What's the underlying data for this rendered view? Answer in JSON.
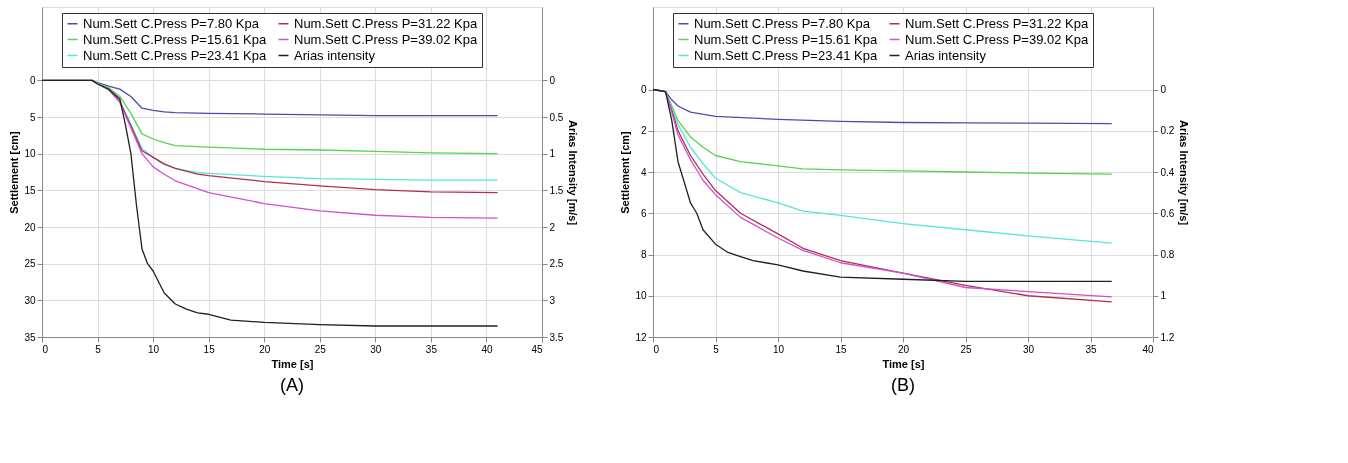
{
  "chart_data": [
    {
      "type": "line",
      "xlabel": "Time [s]",
      "ylabel": "Settlement [cm]",
      "y2label": "Arias Intensity [m/s]",
      "annotations": [
        "(A)"
      ],
      "xlim": [
        0,
        45
      ],
      "xticks": [
        0,
        5,
        10,
        15,
        20,
        25,
        30,
        35,
        40,
        45
      ],
      "ylim": [
        35,
        -10
      ],
      "yticks": [
        0,
        5,
        10,
        15,
        20,
        25,
        30,
        35
      ],
      "y2lim": [
        3.5,
        -1
      ],
      "y2ticks": [
        0,
        0.5,
        1,
        1.5,
        2,
        2.5,
        3,
        3.5
      ],
      "grid": true,
      "legend": "top",
      "line_style": "solid",
      "series": [
        {
          "name": "Num.Sett C.Press P=7.80 Kpa",
          "color": "#4b4bb0",
          "x": [
            0,
            4.5,
            5,
            6,
            7,
            8,
            9,
            10,
            11,
            12,
            15,
            20,
            25,
            30,
            35,
            41
          ],
          "values": [
            0,
            0,
            0.3,
            0.8,
            1.2,
            2.2,
            3.8,
            4.1,
            4.3,
            4.4,
            4.5,
            4.6,
            4.7,
            4.8,
            4.8,
            4.8
          ]
        },
        {
          "name": "Num.Sett C.Press P=15.61 Kpa",
          "color": "#55d455",
          "x": [
            0,
            4.5,
            5,
            6,
            7,
            8,
            9,
            10,
            11,
            12,
            15,
            20,
            25,
            30,
            35,
            41
          ],
          "values": [
            0,
            0,
            0.4,
            1.0,
            2.2,
            4.5,
            7.3,
            8.0,
            8.5,
            8.9,
            9.1,
            9.4,
            9.5,
            9.7,
            9.9,
            10
          ]
        },
        {
          "name": "Num.Sett C.Press P=23.41 Kpa",
          "color": "#55e6d8",
          "x": [
            6,
            7,
            8,
            9,
            10,
            11,
            12,
            14,
            15,
            20,
            25,
            30,
            35,
            41
          ],
          "values": [
            1.2,
            2.8,
            6,
            9.3,
            10.5,
            11.5,
            12.0,
            12.6,
            12.7,
            13.1,
            13.4,
            13.5,
            13.6,
            13.6
          ]
        },
        {
          "name": "Num.Sett C.Press P=31.22 Kpa",
          "color": "#b03050",
          "x": [
            6,
            7,
            8,
            9,
            10,
            11,
            12,
            14,
            15,
            20,
            25,
            30,
            35,
            41
          ],
          "values": [
            1.2,
            2.9,
            6.2,
            9.6,
            10.5,
            11.4,
            12,
            12.8,
            13.0,
            13.8,
            14.4,
            14.9,
            15.2,
            15.3
          ]
        },
        {
          "name": "Num.Sett C.Press P=39.02 Kpa",
          "color": "#d050d0",
          "x": [
            0,
            4.5,
            5,
            6,
            7,
            8,
            9,
            10,
            11,
            12,
            15,
            20,
            25,
            30,
            35,
            41
          ],
          "values": [
            0,
            0,
            0.5,
            1.3,
            3.0,
            6.5,
            10,
            11.8,
            12.8,
            13.7,
            15.3,
            16.8,
            17.8,
            18.4,
            18.7,
            18.8
          ]
        },
        {
          "name": "Arias intensity",
          "color": "#202020",
          "axis": "y2",
          "x": [
            0,
            4.5,
            5,
            6,
            7,
            7.5,
            8,
            8.5,
            9,
            9.5,
            10,
            11,
            12,
            13,
            14,
            15,
            17,
            20,
            25,
            30,
            41
          ],
          "values": [
            0,
            0,
            0.05,
            0.12,
            0.25,
            0.6,
            1.0,
            1.7,
            2.3,
            2.5,
            2.6,
            2.9,
            3.05,
            3.12,
            3.17,
            3.19,
            3.27,
            3.3,
            3.33,
            3.35,
            3.35
          ]
        }
      ]
    },
    {
      "type": "line",
      "xlabel": "Time [s]",
      "ylabel": "Settlement [cm]",
      "y2label": "Arias Intensity [m/s]",
      "annotations": [
        "(B)"
      ],
      "xlim": [
        0,
        40
      ],
      "xticks": [
        0,
        5,
        10,
        15,
        20,
        25,
        30,
        35,
        40
      ],
      "ylim": [
        12,
        -4
      ],
      "yticks": [
        0,
        2,
        4,
        6,
        8,
        10,
        12
      ],
      "y2lim": [
        1.2,
        -0.4
      ],
      "y2ticks": [
        0,
        0.2,
        0.4,
        0.6,
        0.8,
        1,
        1.2
      ],
      "grid": true,
      "legend": "top",
      "line_style": "solid",
      "series": [
        {
          "name": "Num.Sett C.Press P=7.80 Kpa",
          "color": "#4b4bb0",
          "x": [
            0,
            1,
            1.5,
            2,
            3,
            5,
            10,
            15,
            20,
            25,
            30,
            36.7
          ],
          "values": [
            0,
            0.1,
            0.5,
            0.8,
            1.1,
            1.3,
            1.45,
            1.55,
            1.6,
            1.62,
            1.63,
            1.65
          ]
        },
        {
          "name": "Num.Sett C.Press P=15.61 Kpa",
          "color": "#55d455",
          "x": [
            0,
            1,
            1.5,
            2,
            3,
            4,
            5,
            7,
            10,
            12,
            15,
            20,
            25,
            30,
            36.7
          ],
          "values": [
            0,
            0.1,
            0.8,
            1.5,
            2.3,
            2.8,
            3.2,
            3.5,
            3.7,
            3.85,
            3.9,
            3.95,
            4.0,
            4.05,
            4.1
          ]
        },
        {
          "name": "Num.Sett C.Press P=23.41 Kpa",
          "color": "#55e6d8",
          "x": [
            0,
            1,
            1.5,
            2,
            3,
            4,
            5,
            7,
            10,
            12,
            15,
            20,
            25,
            30,
            36.7
          ],
          "values": [
            0,
            0.1,
            0.9,
            1.7,
            2.8,
            3.6,
            4.3,
            5.0,
            5.5,
            5.9,
            6.1,
            6.5,
            6.8,
            7.1,
            7.45
          ]
        },
        {
          "name": "Num.Sett C.Press P=31.22 Kpa",
          "color": "#b03050",
          "x": [
            0,
            1,
            1.5,
            2,
            3,
            4,
            5,
            7,
            10,
            12,
            15,
            20,
            25,
            30,
            36.7
          ],
          "values": [
            0,
            0.1,
            1.0,
            2.0,
            3.2,
            4.1,
            4.9,
            6.0,
            7.0,
            7.7,
            8.3,
            8.9,
            9.5,
            10.0,
            10.3
          ]
        },
        {
          "name": "Num.Sett C.Press P=39.02 Kpa",
          "color": "#d050d0",
          "x": [
            0,
            1,
            1.5,
            2,
            3,
            4,
            5,
            7,
            10,
            12,
            15,
            20,
            25,
            30,
            36.7
          ],
          "values": [
            0,
            0.1,
            1.1,
            2.2,
            3.4,
            4.4,
            5.1,
            6.2,
            7.2,
            7.8,
            8.4,
            8.9,
            9.6,
            9.8,
            10.05
          ]
        },
        {
          "name": "Arias intensity",
          "color": "#202020",
          "axis": "y2",
          "x": [
            0,
            1,
            1.5,
            2,
            2.5,
            3,
            3.5,
            4,
            5,
            6,
            7,
            8,
            9,
            10,
            12,
            15,
            20,
            25,
            30,
            36.7
          ],
          "values": [
            0,
            0.01,
            0.15,
            0.35,
            0.45,
            0.55,
            0.6,
            0.68,
            0.75,
            0.79,
            0.81,
            0.83,
            0.84,
            0.85,
            0.88,
            0.91,
            0.92,
            0.93,
            0.93,
            0.93
          ]
        }
      ]
    }
  ]
}
